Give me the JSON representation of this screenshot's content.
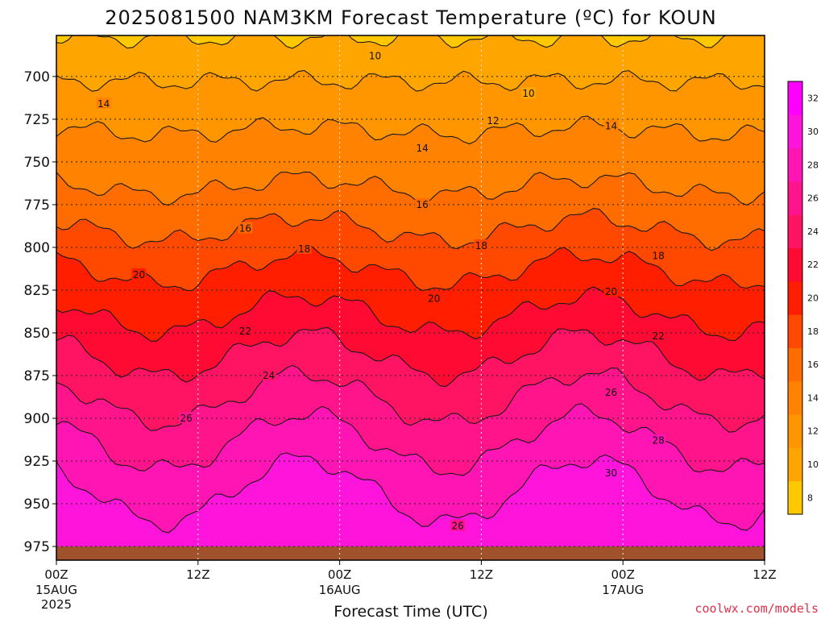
{
  "chart_data": {
    "type": "heatmap",
    "title": "2025081500 NAM3KM Forecast Temperature (ºC) for KOUN",
    "xlabel": "Forecast Time (UTC)",
    "ylabel": "",
    "credit": "coolwx.com/models",
    "y_range": [
      983,
      676
    ],
    "y_ticks": [
      700,
      725,
      750,
      775,
      800,
      825,
      850,
      875,
      900,
      925,
      950,
      975
    ],
    "x_range": [
      0,
      60
    ],
    "x_ticks": [
      {
        "hour": 0,
        "label": "00Z",
        "date": "15AUG",
        "year": "2025"
      },
      {
        "hour": 12,
        "label": "12Z",
        "date": "",
        "year": ""
      },
      {
        "hour": 24,
        "label": "00Z",
        "date": "16AUG",
        "year": ""
      },
      {
        "hour": 36,
        "label": "12Z",
        "date": "",
        "year": ""
      },
      {
        "hour": 48,
        "label": "00Z",
        "date": "17AUG",
        "year": ""
      },
      {
        "hour": 60,
        "label": "12Z",
        "date": "",
        "year": ""
      }
    ],
    "grid": true,
    "contour_interval": 2,
    "colorbar": {
      "position": "right",
      "levels": [
        8,
        10,
        12,
        14,
        16,
        18,
        20,
        22,
        24,
        26,
        28,
        30,
        32
      ],
      "colors": [
        "#ffc800",
        "#ffa500",
        "#ff9600",
        "#ff8200",
        "#ff6c00",
        "#ff4800",
        "#ff1e00",
        "#ff0a32",
        "#ff1464",
        "#ff148c",
        "#ff14b4",
        "#ff14dc",
        "#ff00ff"
      ]
    },
    "temperature_profile": {
      "reference_hour": 0,
      "levels_hpa": [
        680,
        700,
        725,
        750,
        775,
        800,
        825,
        850,
        875,
        900,
        925,
        950,
        975
      ],
      "temps_c": [
        10.2,
        11.8,
        13.6,
        15.0,
        16.6,
        18.8,
        20.8,
        22.6,
        24.8,
        26.6,
        28.6,
        30.2,
        31.0
      ]
    },
    "contour_labels": [
      {
        "value": "10",
        "hour": 27.0,
        "p": 688
      },
      {
        "value": "10",
        "hour": 40.0,
        "p": 710
      },
      {
        "value": "12",
        "hour": 37.0,
        "p": 726
      },
      {
        "value": "14",
        "hour": 4.0,
        "p": 716
      },
      {
        "value": "14",
        "hour": 31.0,
        "p": 742
      },
      {
        "value": "14",
        "hour": 47.0,
        "p": 729
      },
      {
        "value": "16",
        "hour": 16.0,
        "p": 789
      },
      {
        "value": "16",
        "hour": 31.0,
        "p": 775
      },
      {
        "value": "18",
        "hour": 21.0,
        "p": 801
      },
      {
        "value": "18",
        "hour": 36.0,
        "p": 799
      },
      {
        "value": "18",
        "hour": 51.0,
        "p": 805
      },
      {
        "value": "20",
        "hour": 7.0,
        "p": 816
      },
      {
        "value": "20",
        "hour": 32.0,
        "p": 830
      },
      {
        "value": "20",
        "hour": 47.0,
        "p": 826
      },
      {
        "value": "22",
        "hour": 16.0,
        "p": 849
      },
      {
        "value": "22",
        "hour": 51.0,
        "p": 852
      },
      {
        "value": "24",
        "hour": 18.0,
        "p": 875
      },
      {
        "value": "26",
        "hour": 11.0,
        "p": 900
      },
      {
        "value": "26",
        "hour": 47.0,
        "p": 885
      },
      {
        "value": "26",
        "hour": 34.0,
        "p": 963
      },
      {
        "value": "28",
        "hour": 51.0,
        "p": 913
      },
      {
        "value": "30",
        "hour": 47.0,
        "p": 932
      }
    ]
  }
}
